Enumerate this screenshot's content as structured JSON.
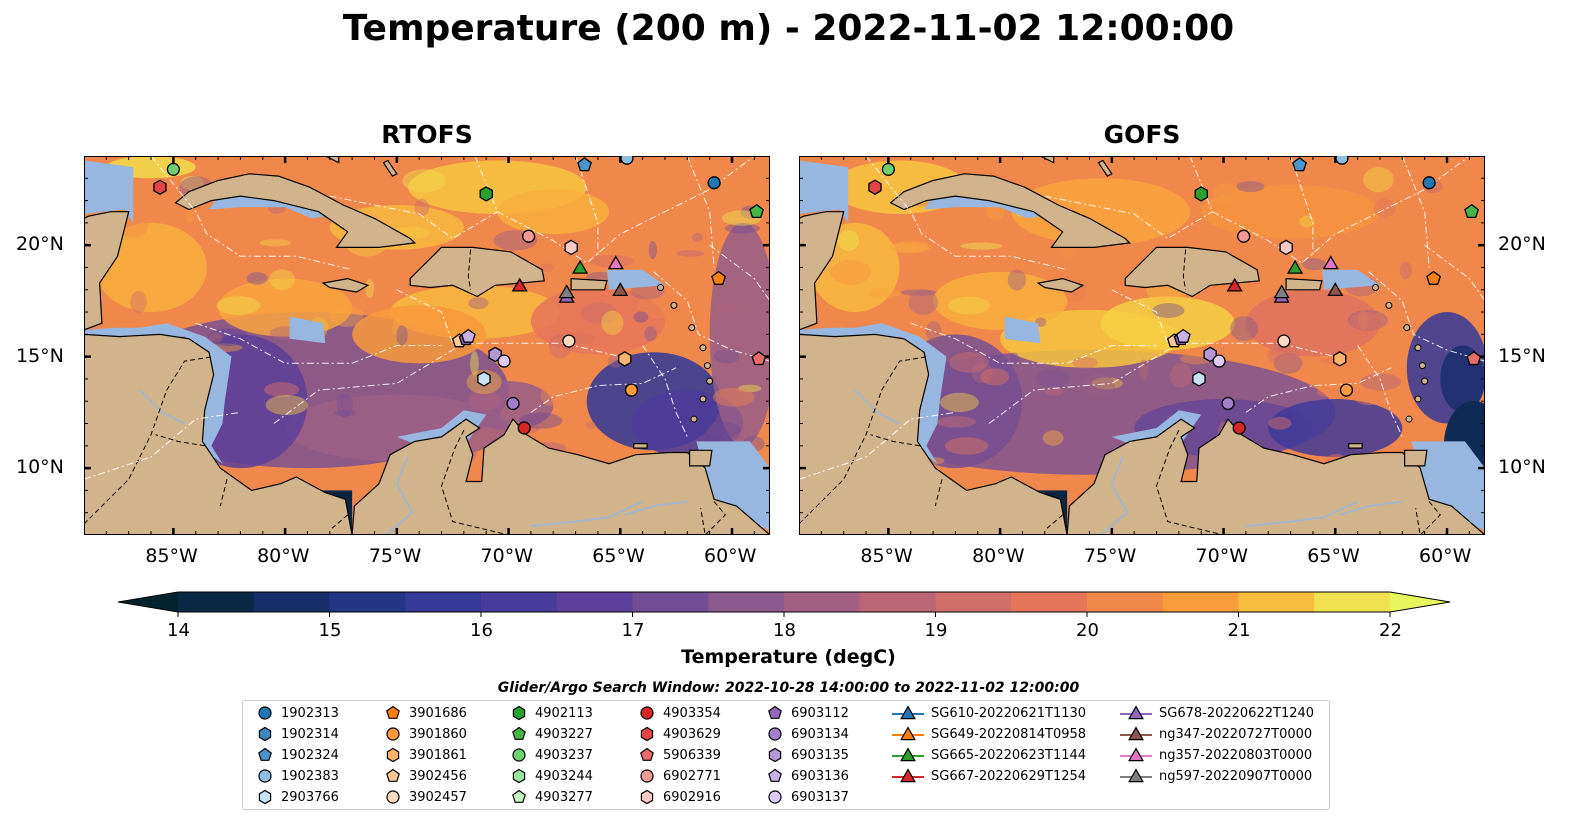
{
  "title": "Temperature (200 m) - 2022-11-02 12:00:00",
  "panels": [
    {
      "title": "RTOFS"
    },
    {
      "title": "GOFS"
    }
  ],
  "axes": {
    "lon_ticks": [
      "85°W",
      "80°W",
      "75°W",
      "70°W",
      "65°W",
      "60°W"
    ],
    "lat_ticks": [
      "20°N",
      "15°N",
      "10°N"
    ],
    "lon_range": [
      -89,
      -58.3
    ],
    "lat_range": [
      7,
      24
    ]
  },
  "colorbar": {
    "label": "Temperature (degC)",
    "ticks": [
      "14",
      "15",
      "16",
      "17",
      "18",
      "19",
      "20",
      "21",
      "22"
    ],
    "range": [
      14,
      22
    ],
    "extend": "both",
    "colormap": "thermal"
  },
  "legend": {
    "title": "Glider/Argo Search Window: 2022-10-28 14:00:00 to 2022-11-02 12:00:00",
    "columns": [
      [
        {
          "label": "1902313",
          "marker": "circle",
          "color": "#1f77b4"
        },
        {
          "label": "1902314",
          "marker": "hexagon",
          "color": "#3a86c0"
        },
        {
          "label": "1902324",
          "marker": "pentagon",
          "color": "#4d94cc"
        },
        {
          "label": "1902383",
          "marker": "circle",
          "color": "#8fc0e3"
        },
        {
          "label": "2903766",
          "marker": "hexagon",
          "color": "#c6e2f4"
        }
      ],
      [
        {
          "label": "3901686",
          "marker": "pentagon",
          "color": "#ff7f0e"
        },
        {
          "label": "3901860",
          "marker": "circle",
          "color": "#ff9a3d"
        },
        {
          "label": "3901861",
          "marker": "hexagon",
          "color": "#ffb26a"
        },
        {
          "label": "3902456",
          "marker": "pentagon",
          "color": "#ffc894"
        },
        {
          "label": "3902457",
          "marker": "circle",
          "color": "#ffdcc0"
        }
      ],
      [
        {
          "label": "4902113",
          "marker": "hexagon",
          "color": "#2ca02c"
        },
        {
          "label": "4903227",
          "marker": "pentagon",
          "color": "#45b545"
        },
        {
          "label": "4903237",
          "marker": "circle",
          "color": "#6fd06f"
        },
        {
          "label": "4903244",
          "marker": "hexagon",
          "color": "#9be39b"
        },
        {
          "label": "4903277",
          "marker": "pentagon",
          "color": "#c8f3c2"
        }
      ],
      [
        {
          "label": "4903354",
          "marker": "circle",
          "color": "#d62728"
        },
        {
          "label": "4903629",
          "marker": "hexagon",
          "color": "#e04444"
        },
        {
          "label": "5906339",
          "marker": "pentagon",
          "color": "#ea6b6b"
        },
        {
          "label": "6902771",
          "marker": "circle",
          "color": "#f39a97"
        },
        {
          "label": "6902916",
          "marker": "hexagon",
          "color": "#fbc9c7"
        }
      ],
      [
        {
          "label": "6903112",
          "marker": "pentagon",
          "color": "#9467bd"
        },
        {
          "label": "6903134",
          "marker": "circle",
          "color": "#a27fc8"
        },
        {
          "label": "6903135",
          "marker": "hexagon",
          "color": "#b397d6"
        },
        {
          "label": "6903136",
          "marker": "pentagon",
          "color": "#c7b1e6"
        },
        {
          "label": "6903137",
          "marker": "circle",
          "color": "#dccbf4"
        }
      ],
      [
        {
          "label": "SG610-20220621T1130",
          "marker": "triangle",
          "color": "#1f77b4",
          "line": true
        },
        {
          "label": "SG649-20220814T0958",
          "marker": "triangle",
          "color": "#ff7f0e",
          "line": true
        },
        {
          "label": "SG665-20220623T1144",
          "marker": "triangle",
          "color": "#2ca02c",
          "line": true
        },
        {
          "label": "SG667-20220629T1254",
          "marker": "triangle",
          "color": "#d62728",
          "line": true
        }
      ],
      [
        {
          "label": "SG678-20220622T1240",
          "marker": "triangle",
          "color": "#9467bd",
          "line": true
        },
        {
          "label": "ng347-20220727T0000",
          "marker": "triangle",
          "color": "#8c564b",
          "line": true
        },
        {
          "label": "ng357-20220803T0000",
          "marker": "triangle",
          "color": "#e377c2",
          "line": true
        },
        {
          "label": "ng597-20220907T0000",
          "marker": "triangle",
          "color": "#7f7f7f",
          "line": true
        }
      ]
    ]
  },
  "observations": [
    {
      "id": "1902313",
      "lon": -60.8,
      "lat": 22.8
    },
    {
      "id": "3901686",
      "lon": -60.6,
      "lat": 18.5
    },
    {
      "id": "3901860",
      "lon": -64.5,
      "lat": 13.5
    },
    {
      "id": "3901861",
      "lon": -64.8,
      "lat": 14.9
    },
    {
      "id": "3902456",
      "lon": -72.2,
      "lat": 15.7
    },
    {
      "id": "3902457",
      "lon": -67.3,
      "lat": 15.7
    },
    {
      "id": "4902113",
      "lon": -71.0,
      "lat": 22.3
    },
    {
      "id": "4903227",
      "lon": -58.9,
      "lat": 21.5
    },
    {
      "id": "4903237",
      "lon": -85.0,
      "lat": 23.4
    },
    {
      "id": "2903766",
      "lon": -71.1,
      "lat": 14.0
    },
    {
      "id": "4903354",
      "lon": -69.3,
      "lat": 11.8
    },
    {
      "id": "4903629",
      "lon": -85.6,
      "lat": 22.6
    },
    {
      "id": "5906339",
      "lon": -58.8,
      "lat": 14.9
    },
    {
      "id": "6902771",
      "lon": -69.1,
      "lat": 20.4
    },
    {
      "id": "6902916",
      "lon": -67.2,
      "lat": 19.9
    },
    {
      "id": "6903112",
      "lon": -71.9,
      "lat": 15.8
    },
    {
      "id": "6903134",
      "lon": -69.8,
      "lat": 12.9
    },
    {
      "id": "6903135",
      "lon": -70.6,
      "lat": 15.1
    },
    {
      "id": "6903136",
      "lon": -71.8,
      "lat": 15.9
    },
    {
      "id": "6903137",
      "lon": -70.2,
      "lat": 14.8
    },
    {
      "id": "1902324",
      "lon": -66.6,
      "lat": 23.6
    },
    {
      "id": "1902383",
      "lon": -64.7,
      "lat": 23.9
    }
  ],
  "gliders": [
    {
      "id": "SG665-20220623T1144",
      "lon": -66.8,
      "lat": 19.0
    },
    {
      "id": "SG667-20220629T1254",
      "lon": -69.5,
      "lat": 18.2
    },
    {
      "id": "SG678-20220622T1240",
      "lon": -67.4,
      "lat": 17.7
    },
    {
      "id": "ng347-20220727T0000",
      "lon": -65.0,
      "lat": 18.0
    },
    {
      "id": "ng357-20220803T0000",
      "lon": -65.2,
      "lat": 19.2
    },
    {
      "id": "ng597-20220907T0000",
      "lon": -67.4,
      "lat": 17.9
    }
  ]
}
